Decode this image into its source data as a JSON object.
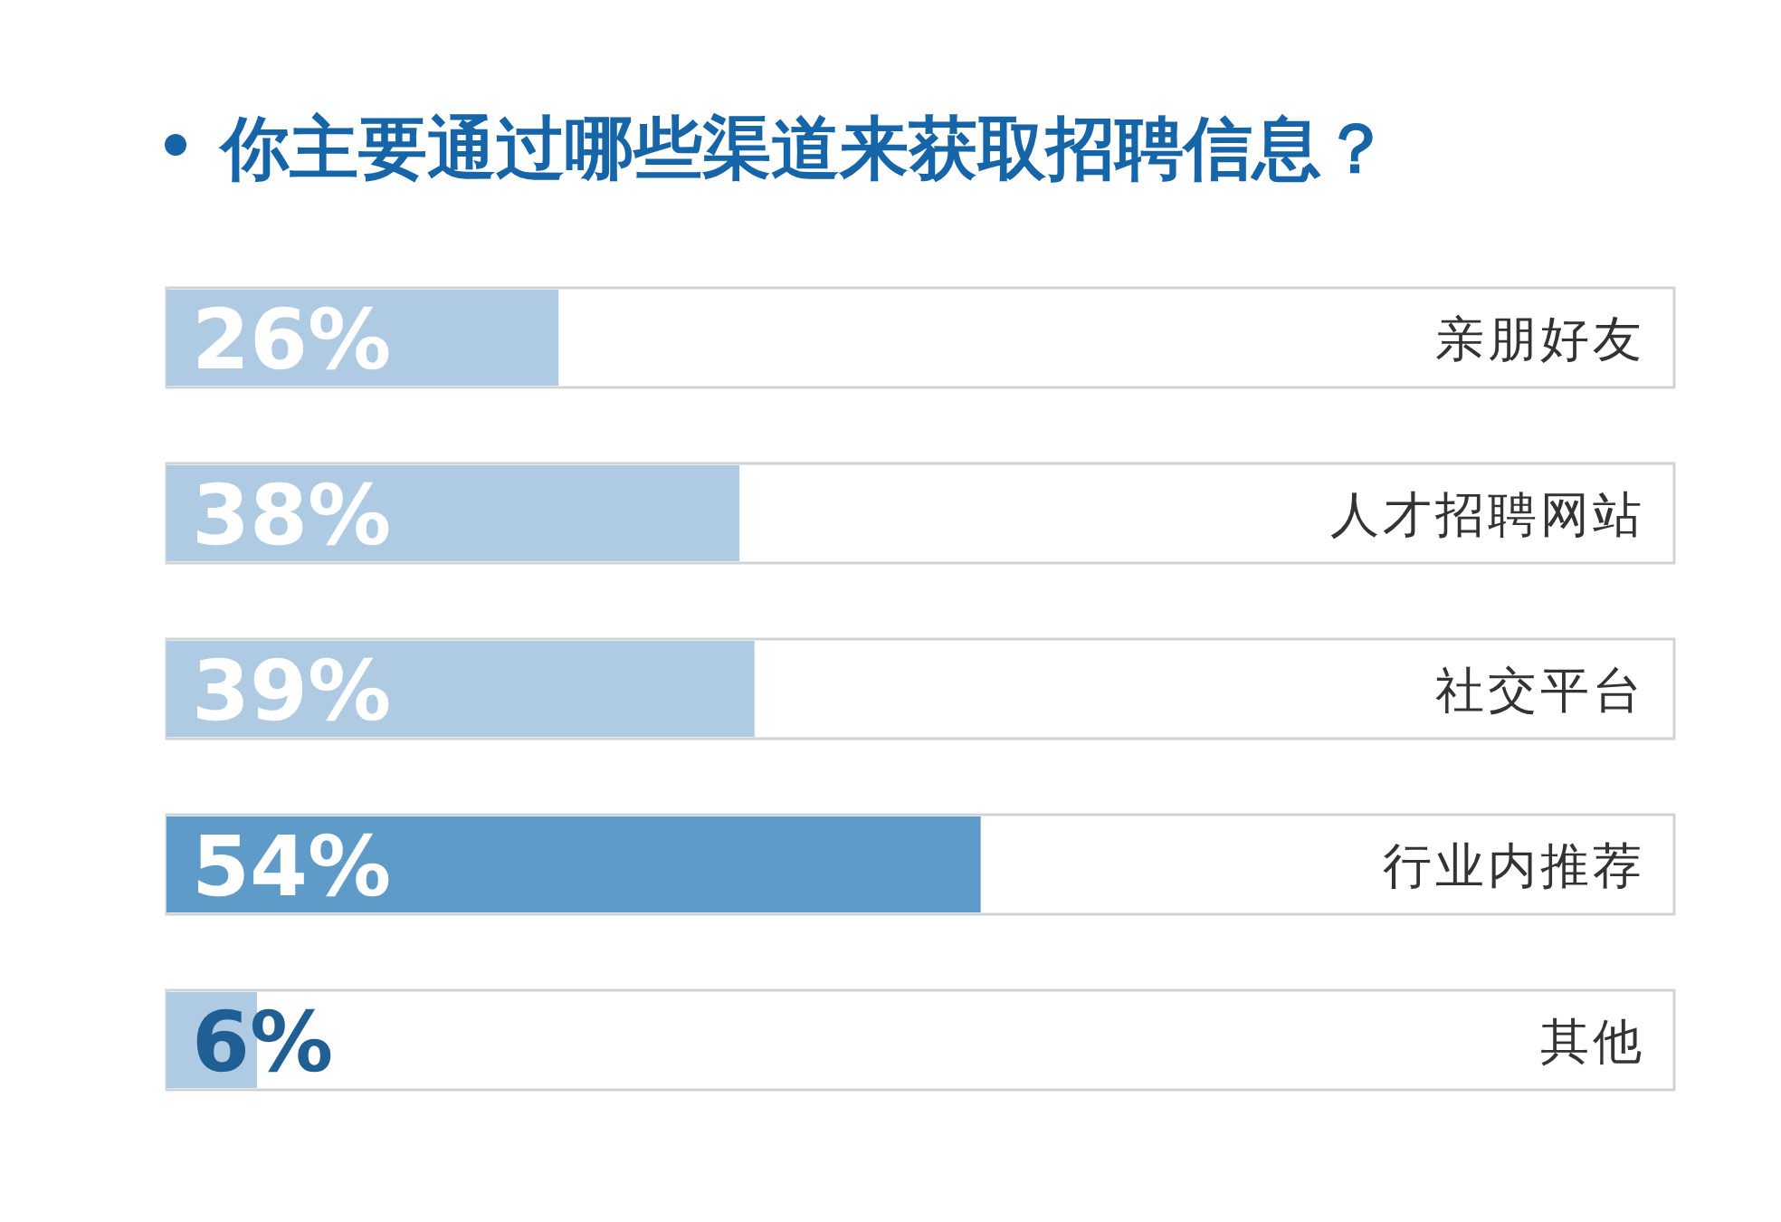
{
  "chart_data": {
    "type": "bar",
    "orientation": "horizontal",
    "title": "你主要通过哪些渠道来获取招聘信息？",
    "categories": [
      "亲朋好友",
      "人才招聘网站",
      "社交平台",
      "行业内推荐",
      "其他"
    ],
    "values": [
      26,
      38,
      39,
      54,
      6
    ],
    "colors": [
      "#aecbe3",
      "#aecbe3",
      "#aecbe3",
      "#5e9bc8",
      "#aecbe3"
    ],
    "value_labels": [
      "26%",
      "38%",
      "39%",
      "54%",
      "6%"
    ]
  }
}
